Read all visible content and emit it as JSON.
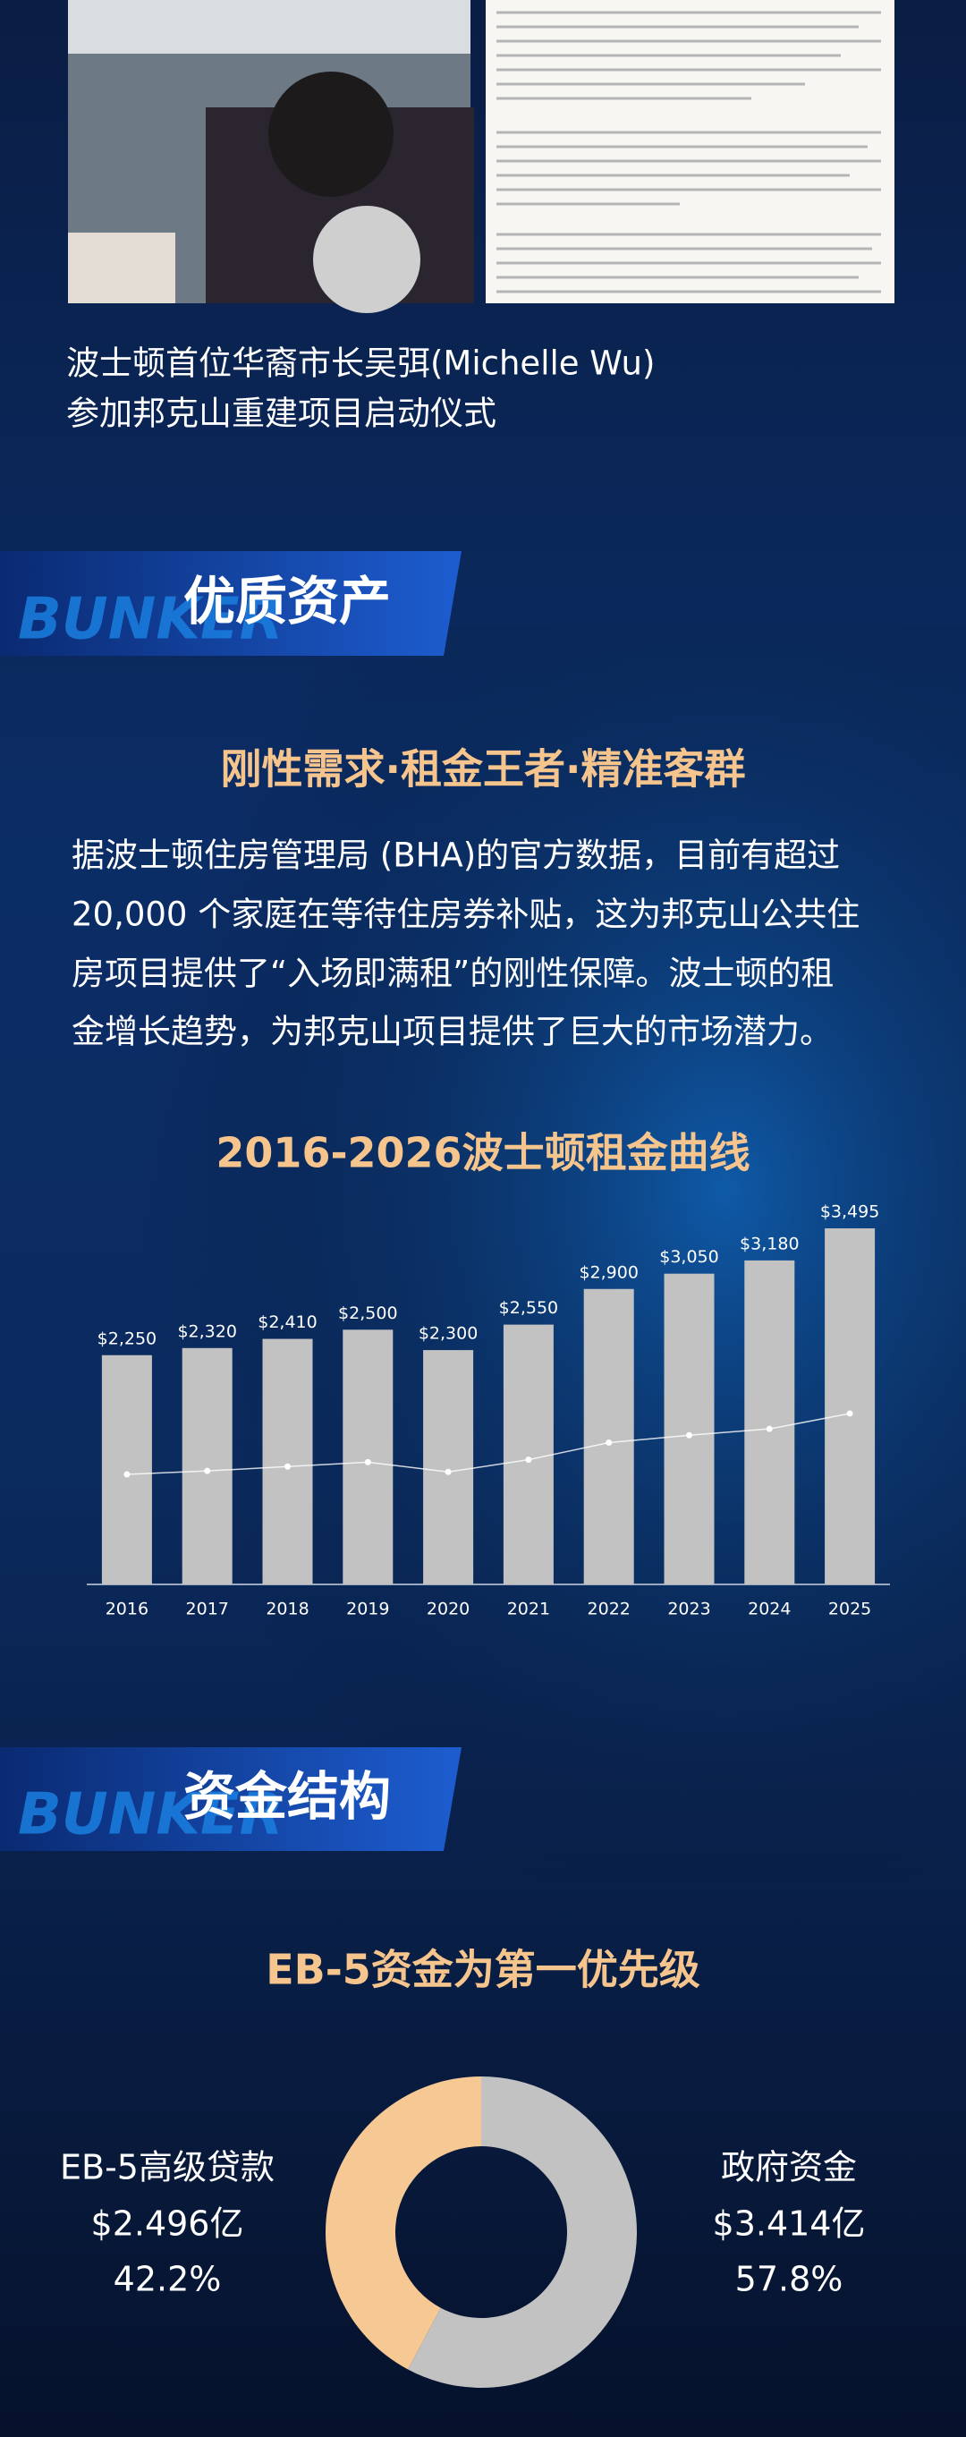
{
  "photo_caption": [
    "波士顿首位华裔市长吴弭(Michelle Wu)",
    "参加邦克山重建项目启动仪式"
  ],
  "sections": [
    {
      "title": "优质资产",
      "watermark": "BUNKER",
      "subtitle": "刚性需求·租金王者·精准客群",
      "paragraph": [
        "据波士顿住房管理局 (BHA)的官方数据，目前有超过",
        "20,000 个家庭在等待住房券补贴，这为邦克山公共住",
        "房项目提供了“入场即满租”的刚性保障。波士顿的租",
        "金增长趋势，为邦克山项目提供了巨大的市场潜力。"
      ]
    },
    {
      "title": "资金结构",
      "watermark": "BUNKER"
    }
  ],
  "chart_data": [
    {
      "type": "bar",
      "title": "2016-2026波士顿租金曲线",
      "categories": [
        "2016",
        "2017",
        "2018",
        "2019",
        "2020",
        "2021",
        "2022",
        "2023",
        "2024",
        "2025"
      ],
      "values": [
        2250,
        2320,
        2410,
        2500,
        2300,
        2550,
        2900,
        3050,
        3180,
        3495
      ],
      "value_labels": [
        "$2,250",
        "$2,320",
        "$2,410",
        "$2,500",
        "$2,300",
        "$2,550",
        "$2,900",
        "$3,050",
        "$3,180",
        "$3,495"
      ],
      "color": "#c2c2c2",
      "trend_line": true,
      "trend_color": "#ffffff"
    },
    {
      "type": "pie",
      "donut": true,
      "title": "EB-5资金为第一优先级",
      "categories": [
        "EB-5高级贷款",
        "政府资金"
      ],
      "amounts": [
        2.496,
        3.414
      ],
      "amount_labels": [
        "$2.496亿",
        "$3.414亿"
      ],
      "values": [
        42.2,
        57.8
      ],
      "value_labels": [
        "42.2%",
        "57.8%"
      ],
      "colors": [
        "#f6c893",
        "#c2c2c2"
      ]
    }
  ]
}
